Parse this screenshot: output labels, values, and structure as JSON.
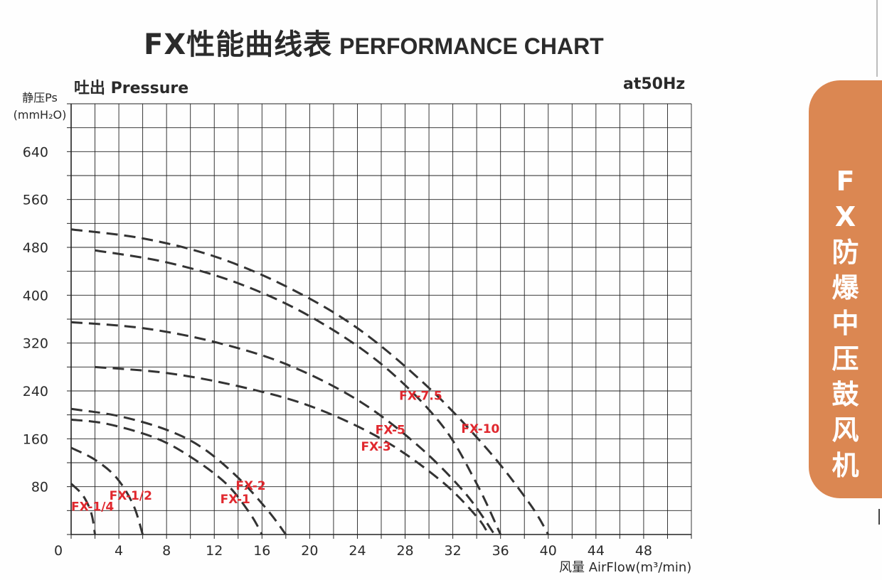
{
  "header": {
    "title_cn": "FX性能曲线表",
    "title_en": "PERFORMANCE CHART",
    "pressure_label": "吐出 Pressure",
    "frequency": "at50Hz",
    "y_unit_line1": "静压Ps",
    "y_unit_line2": "(mmH₂O)",
    "x_unit": "风量 AirFlow(m³/min)"
  },
  "side_tab": {
    "text": "FX防爆中压鼓风机"
  },
  "colors": {
    "curve": "#333333",
    "label": "#e0282e",
    "grid": "#222222",
    "tab": "#db8752"
  },
  "chart_data": {
    "type": "line",
    "xlim": [
      0,
      52
    ],
    "ylim": [
      0,
      720
    ],
    "x_ticks": [
      0,
      4,
      8,
      12,
      16,
      20,
      24,
      28,
      32,
      36,
      40,
      44,
      48
    ],
    "y_ticks": [
      80,
      160,
      240,
      320,
      400,
      480,
      560,
      640
    ],
    "grid": true,
    "series": [
      {
        "name": "FX-1/4",
        "label_at": [
          0,
          40
        ],
        "x": [
          0,
          1,
          1.7,
          2
        ],
        "y": [
          85,
          65,
          35,
          0
        ]
      },
      {
        "name": "FX-1/2",
        "label_at": [
          3.2,
          58
        ],
        "x": [
          0,
          2,
          3.8,
          5.2,
          6
        ],
        "y": [
          145,
          125,
          95,
          50,
          0
        ]
      },
      {
        "name": "FX-1",
        "label_at": [
          12.5,
          52
        ],
        "x": [
          0,
          3,
          7,
          10,
          13,
          15,
          16
        ],
        "y": [
          192,
          185,
          162,
          130,
          85,
          35,
          0
        ]
      },
      {
        "name": "FX-2",
        "label_at": [
          13.8,
          75
        ],
        "x": [
          0,
          4,
          8,
          11,
          14,
          16.5,
          18
        ],
        "y": [
          210,
          198,
          175,
          145,
          95,
          40,
          0
        ]
      },
      {
        "name": "FX-3",
        "label_at": [
          24.3,
          140
        ],
        "x": [
          2,
          8,
          14,
          20,
          26,
          31,
          34,
          35
        ],
        "y": [
          280,
          270,
          248,
          215,
          160,
          90,
          30,
          0
        ]
      },
      {
        "name": "FX-5",
        "label_at": [
          25.5,
          168
        ],
        "x": [
          0,
          6,
          12,
          18,
          24,
          29,
          33,
          35.5
        ],
        "y": [
          355,
          345,
          322,
          285,
          225,
          150,
          70,
          0
        ]
      },
      {
        "name": "FX-7.5",
        "label_at": [
          27.5,
          225
        ],
        "x": [
          2,
          8,
          14,
          20,
          26,
          31,
          34,
          36
        ],
        "y": [
          475,
          455,
          420,
          365,
          285,
          185,
          85,
          0
        ]
      },
      {
        "name": "FX-10",
        "label_at": [
          32.7,
          170
        ],
        "x": [
          0,
          6,
          12,
          18,
          24,
          30,
          35,
          38.5,
          40
        ],
        "y": [
          510,
          495,
          465,
          415,
          345,
          245,
          140,
          50,
          0
        ]
      }
    ]
  }
}
